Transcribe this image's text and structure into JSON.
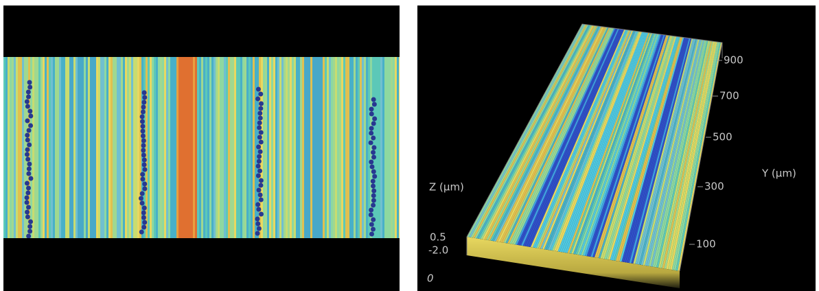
{
  "surface_3d": {
    "z_axis_label": "Z (µm)",
    "z_ticks": [
      "0.5",
      "-2.0"
    ],
    "origin_label": "0",
    "y_axis_label": "Y (µm)",
    "y_ticks": [
      "900",
      "700",
      "500",
      "300",
      "100"
    ]
  }
}
